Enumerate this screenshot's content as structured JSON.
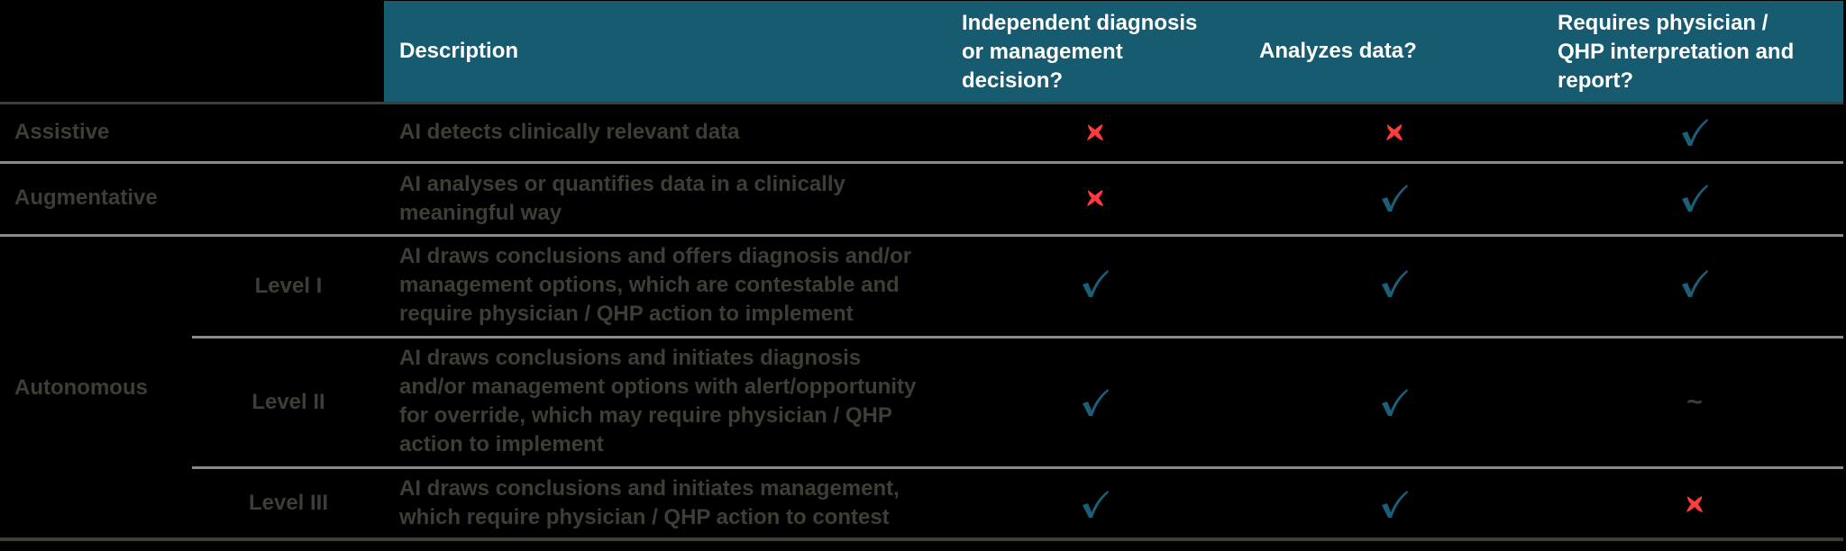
{
  "colors": {
    "header_bg": "#175b70",
    "text": "#3e3d36",
    "check": "#1c5f78",
    "cross": "#ff3b3b",
    "separator": "#8a8a8a"
  },
  "header": {
    "description": "Description",
    "independent_decision": [
      "Independent diagnosis",
      "or management",
      "decision?"
    ],
    "analyzes_data": "Analyzes data?",
    "requires_physician": [
      "Requires physician /",
      "QHP interpretation and",
      "report?"
    ]
  },
  "rows": [
    {
      "category": "Assistive",
      "level": "",
      "description": [
        "AI detects clinically relevant data"
      ],
      "independent_decision": "cross",
      "analyzes_data": "cross",
      "requires_physician": "check"
    },
    {
      "category": "Augmentative",
      "level": "",
      "description": [
        "AI analyses or quantifies data in a clinically",
        "meaningful way"
      ],
      "independent_decision": "cross",
      "analyzes_data": "check",
      "requires_physician": "check"
    },
    {
      "category": "Autonomous",
      "level": "Level I",
      "description": [
        "AI draws conclusions and offers diagnosis and/or",
        "management options, which are contestable and",
        "require physician / QHP action to implement"
      ],
      "independent_decision": "check",
      "analyzes_data": "check",
      "requires_physician": "check"
    },
    {
      "category": "Autonomous",
      "level": "Level II",
      "description": [
        "AI draws conclusions and initiates diagnosis",
        "and/or management options with alert/opportunity",
        "for override, which may require physician / QHP",
        "action to implement"
      ],
      "independent_decision": "check",
      "analyzes_data": "check",
      "requires_physician": "~"
    },
    {
      "category": "Autonomous",
      "level": "Level III",
      "description": [
        "AI draws conclusions and initiates management,",
        "which require physician / QHP action to contest"
      ],
      "independent_decision": "check",
      "analyzes_data": "check",
      "requires_physician": "cross"
    }
  ],
  "categories": {
    "assistive": "Assistive",
    "augmentative": "Augmentative",
    "autonomous": "Autonomous"
  },
  "symbols": {
    "partial": "~"
  }
}
